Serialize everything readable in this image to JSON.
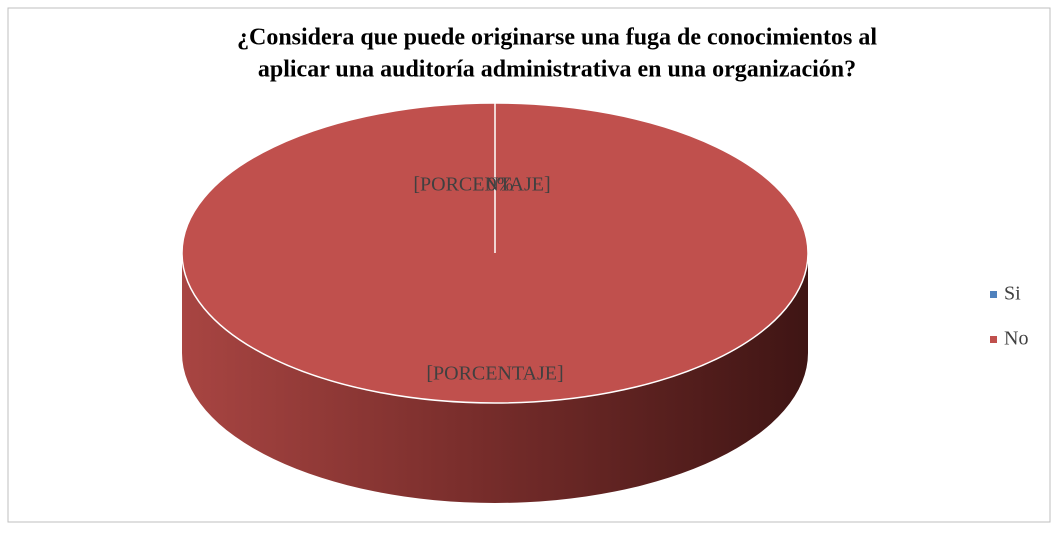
{
  "chart_data": {
    "type": "pie3d",
    "title": [
      "¿Considera que puede originarse una fuga de conocimientos al",
      "aplicar una auditoría administrativa en una organización?"
    ],
    "categories": [
      "Si",
      "No"
    ],
    "values": [
      0,
      100
    ],
    "value_labels": [
      "0%",
      null
    ],
    "colors": [
      "#4f81bd",
      "#c0504d"
    ],
    "annotations": [
      "[PORCENTAJE]",
      "[PORCENTAJE]"
    ],
    "legend": "right"
  }
}
